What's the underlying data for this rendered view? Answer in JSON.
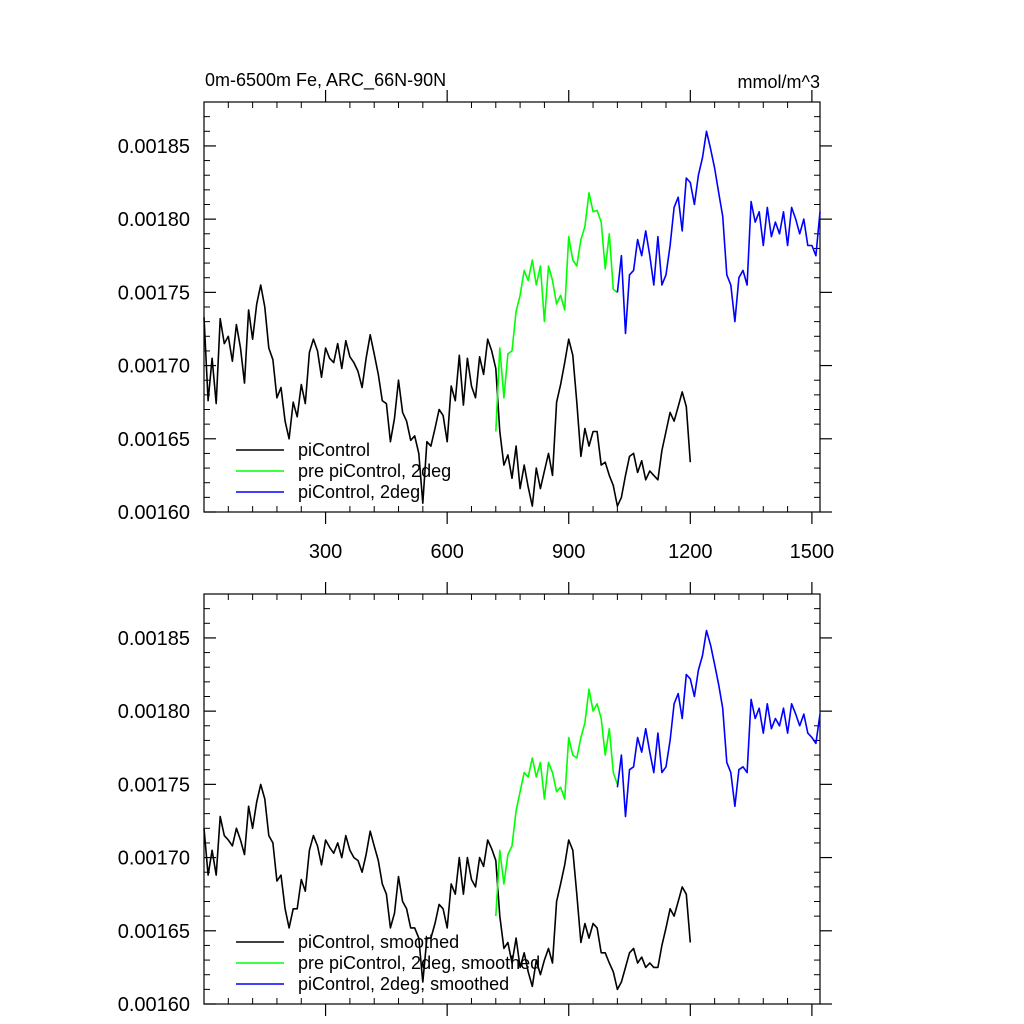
{
  "chart_data": [
    {
      "type": "line",
      "title": "0m-6500m Fe, ARC_66N-90N",
      "units": "mmol/m^3",
      "xlim": [
        0,
        1520
      ],
      "ylim": [
        0.0016,
        0.00188
      ],
      "xticks": [
        300,
        600,
        900,
        1200,
        1500
      ],
      "xtick_labels": [
        "300",
        "600",
        "900",
        "1200",
        "1500"
      ],
      "yticks": [
        0.0016,
        0.00165,
        0.0017,
        0.00175,
        0.0018,
        0.00185
      ],
      "ytick_labels": [
        "0.00160",
        "0.00165",
        "0.00170",
        "0.00175",
        "0.00180",
        "0.00185"
      ],
      "legend_position": "bottom-left",
      "series": [
        {
          "name": "piControl",
          "color": "#000000",
          "x": [
            0,
            10,
            20,
            30,
            40,
            50,
            60,
            70,
            80,
            90,
            100,
            110,
            120,
            130,
            140,
            150,
            160,
            170,
            180,
            190,
            200,
            210,
            220,
            230,
            240,
            250,
            260,
            270,
            280,
            290,
            300,
            310,
            320,
            330,
            340,
            350,
            360,
            370,
            380,
            390,
            400,
            410,
            420,
            430,
            440,
            450,
            460,
            470,
            480,
            490,
            500,
            510,
            520,
            530,
            540,
            550,
            560,
            570,
            580,
            590,
            600,
            610,
            620,
            630,
            640,
            650,
            660,
            670,
            680,
            690,
            700,
            710,
            720,
            730,
            740,
            750,
            760,
            770,
            780,
            790,
            800,
            810,
            820,
            830,
            840,
            850,
            860,
            870,
            880,
            890,
            900,
            910,
            920,
            930,
            940,
            950,
            960,
            970,
            980,
            990,
            1000,
            1010,
            1020,
            1030,
            1040,
            1050,
            1060,
            1070,
            1080,
            1090,
            1100,
            1110,
            1120,
            1130,
            1140,
            1150,
            1160,
            1170,
            1180,
            1190,
            1200
          ],
          "y": [
            0.001733,
            0.001676,
            0.001705,
            0.001674,
            0.001732,
            0.001715,
            0.00172,
            0.001703,
            0.001728,
            0.001712,
            0.001688,
            0.001738,
            0.001718,
            0.001742,
            0.001755,
            0.00174,
            0.001712,
            0.001704,
            0.001678,
            0.001685,
            0.001662,
            0.00165,
            0.001675,
            0.001665,
            0.001687,
            0.001674,
            0.001709,
            0.001718,
            0.00171,
            0.001692,
            0.001712,
            0.001705,
            0.001702,
            0.001715,
            0.001698,
            0.001717,
            0.001706,
            0.001702,
            0.001696,
            0.001685,
            0.001705,
            0.001721,
            0.001708,
            0.001694,
            0.001676,
            0.001674,
            0.001648,
            0.001664,
            0.00169,
            0.001668,
            0.001662,
            0.001649,
            0.001652,
            0.00164,
            0.001606,
            0.001648,
            0.001645,
            0.001657,
            0.00167,
            0.001666,
            0.001648,
            0.001686,
            0.001676,
            0.001707,
            0.001673,
            0.001705,
            0.001686,
            0.001678,
            0.001706,
            0.001694,
            0.001718,
            0.00171,
            0.001698,
            0.001655,
            0.001632,
            0.001639,
            0.001623,
            0.001645,
            0.001616,
            0.001632,
            0.001617,
            0.001604,
            0.00163,
            0.001616,
            0.001628,
            0.00164,
            0.001625,
            0.001675,
            0.001687,
            0.001702,
            0.001718,
            0.001707,
            0.001675,
            0.001638,
            0.001657,
            0.001645,
            0.001655,
            0.001655,
            0.001632,
            0.001634,
            0.001625,
            0.001618,
            0.001604,
            0.00161,
            0.001625,
            0.001638,
            0.00164,
            0.001627,
            0.001635,
            0.001622,
            0.001628,
            0.001625,
            0.001622,
            0.001642,
            0.001655,
            0.001668,
            0.001662,
            0.001672,
            0.001682,
            0.001672,
            0.001634
          ]
        },
        {
          "name": "pre piControl, 2deg",
          "color": "#00ff00",
          "x": [
            720,
            730,
            740,
            750,
            760,
            770,
            780,
            790,
            800,
            810,
            820,
            830,
            840,
            850,
            860,
            870,
            880,
            890,
            900,
            910,
            920,
            930,
            940,
            950,
            960,
            970,
            980,
            990,
            1000,
            1010,
            1020
          ],
          "y": [
            0.001655,
            0.001712,
            0.001678,
            0.001708,
            0.00171,
            0.001737,
            0.001748,
            0.001765,
            0.001758,
            0.001772,
            0.001755,
            0.001768,
            0.00173,
            0.001768,
            0.001758,
            0.001742,
            0.001748,
            0.001738,
            0.001788,
            0.001772,
            0.001768,
            0.001786,
            0.001795,
            0.001818,
            0.001805,
            0.001806,
            0.001798,
            0.001766,
            0.00179,
            0.001752,
            0.00175
          ]
        },
        {
          "name": "piControl, 2deg",
          "color": "#0000ff",
          "x": [
            1020,
            1030,
            1040,
            1050,
            1060,
            1070,
            1080,
            1090,
            1100,
            1110,
            1120,
            1130,
            1140,
            1150,
            1160,
            1170,
            1180,
            1190,
            1200,
            1210,
            1220,
            1230,
            1240,
            1250,
            1260,
            1270,
            1280,
            1290,
            1300,
            1310,
            1320,
            1330,
            1340,
            1350,
            1360,
            1370,
            1380,
            1390,
            1400,
            1410,
            1420,
            1430,
            1440,
            1450,
            1460,
            1470,
            1480,
            1490,
            1500,
            1510,
            1520
          ],
          "y": [
            0.00175,
            0.001775,
            0.001722,
            0.001762,
            0.001765,
            0.001786,
            0.001775,
            0.001792,
            0.001775,
            0.001755,
            0.001788,
            0.001755,
            0.001762,
            0.001782,
            0.001808,
            0.001815,
            0.001792,
            0.001828,
            0.001825,
            0.00181,
            0.00183,
            0.001842,
            0.00186,
            0.001848,
            0.001835,
            0.001818,
            0.001802,
            0.001762,
            0.001755,
            0.00173,
            0.00176,
            0.001765,
            0.001755,
            0.001812,
            0.001798,
            0.001805,
            0.001782,
            0.001808,
            0.001788,
            0.001798,
            0.00179,
            0.001805,
            0.001782,
            0.001808,
            0.0018,
            0.00179,
            0.0018,
            0.001782,
            0.001782,
            0.001775,
            0.001805
          ]
        }
      ]
    },
    {
      "type": "line",
      "xlim": [
        0,
        1520
      ],
      "ylim": [
        0.0016,
        0.00188
      ],
      "xticks": [
        300,
        600,
        900,
        1200,
        1500
      ],
      "yticks": [
        0.0016,
        0.00165,
        0.0017,
        0.00175,
        0.0018,
        0.00185
      ],
      "ytick_labels": [
        "0.00160",
        "0.00165",
        "0.00170",
        "0.00175",
        "0.00180",
        "0.00185"
      ],
      "legend_position": "bottom-left",
      "series": [
        {
          "name": "piControl, smoothed",
          "color": "#000000",
          "x": [
            0,
            10,
            20,
            30,
            40,
            50,
            60,
            70,
            80,
            90,
            100,
            110,
            120,
            130,
            140,
            150,
            160,
            170,
            180,
            190,
            200,
            210,
            220,
            230,
            240,
            250,
            260,
            270,
            280,
            290,
            300,
            310,
            320,
            330,
            340,
            350,
            360,
            370,
            380,
            390,
            400,
            410,
            420,
            430,
            440,
            450,
            460,
            470,
            480,
            490,
            500,
            510,
            520,
            530,
            540,
            550,
            560,
            570,
            580,
            590,
            600,
            610,
            620,
            630,
            640,
            650,
            660,
            670,
            680,
            690,
            700,
            710,
            720,
            730,
            740,
            750,
            760,
            770,
            780,
            790,
            800,
            810,
            820,
            830,
            840,
            850,
            860,
            870,
            880,
            890,
            900,
            910,
            920,
            930,
            940,
            950,
            960,
            970,
            980,
            990,
            1000,
            1010,
            1020,
            1030,
            1040,
            1050,
            1060,
            1070,
            1080,
            1090,
            1100,
            1110,
            1120,
            1130,
            1140,
            1150,
            1160,
            1170,
            1180,
            1190,
            1200
          ],
          "y": [
            0.00172,
            0.001688,
            0.001705,
            0.001688,
            0.001728,
            0.001715,
            0.001712,
            0.001708,
            0.00172,
            0.001712,
            0.001702,
            0.001735,
            0.00172,
            0.001738,
            0.00175,
            0.00174,
            0.001715,
            0.00171,
            0.001684,
            0.001688,
            0.001665,
            0.001652,
            0.001665,
            0.001665,
            0.001685,
            0.001677,
            0.001705,
            0.001715,
            0.001708,
            0.001695,
            0.001712,
            0.001707,
            0.001703,
            0.00171,
            0.0017,
            0.001715,
            0.001705,
            0.0017,
            0.001698,
            0.00169,
            0.001702,
            0.001718,
            0.001708,
            0.001698,
            0.001682,
            0.001675,
            0.001652,
            0.001662,
            0.001687,
            0.00167,
            0.001665,
            0.001652,
            0.001652,
            0.001645,
            0.001615,
            0.001645,
            0.001645,
            0.001655,
            0.001668,
            0.001665,
            0.001652,
            0.001682,
            0.001675,
            0.0017,
            0.001675,
            0.0017,
            0.001685,
            0.00168,
            0.0017,
            0.001694,
            0.001712,
            0.001706,
            0.001698,
            0.00166,
            0.001638,
            0.001642,
            0.001628,
            0.001645,
            0.001625,
            0.001635,
            0.001622,
            0.001612,
            0.00163,
            0.00162,
            0.00163,
            0.001638,
            0.001628,
            0.00167,
            0.001682,
            0.001695,
            0.001712,
            0.001705,
            0.001675,
            0.001642,
            0.001655,
            0.001645,
            0.001655,
            0.001652,
            0.001635,
            0.001635,
            0.001628,
            0.001622,
            0.00161,
            0.001615,
            0.001625,
            0.001635,
            0.001638,
            0.001628,
            0.001632,
            0.001625,
            0.001628,
            0.001625,
            0.001625,
            0.00164,
            0.001652,
            0.001665,
            0.00166,
            0.00167,
            0.00168,
            0.001675,
            0.001642
          ]
        },
        {
          "name": "pre piControl, 2deg, smoothed",
          "color": "#00ff00",
          "x": [
            720,
            730,
            740,
            750,
            760,
            770,
            780,
            790,
            800,
            810,
            820,
            830,
            840,
            850,
            860,
            870,
            880,
            890,
            900,
            910,
            920,
            930,
            940,
            950,
            960,
            970,
            980,
            990,
            1000,
            1010,
            1020
          ],
          "y": [
            0.00166,
            0.001705,
            0.001682,
            0.001702,
            0.001708,
            0.001732,
            0.001745,
            0.001758,
            0.001755,
            0.001768,
            0.001755,
            0.001765,
            0.00174,
            0.001765,
            0.001758,
            0.001745,
            0.001748,
            0.00174,
            0.001782,
            0.00177,
            0.001768,
            0.001782,
            0.001792,
            0.001815,
            0.0018,
            0.001805,
            0.001795,
            0.00177,
            0.001788,
            0.001758,
            0.00175
          ]
        },
        {
          "name": "piControl, 2deg, smoothed",
          "color": "#0000ff",
          "x": [
            1020,
            1030,
            1040,
            1050,
            1060,
            1070,
            1080,
            1090,
            1100,
            1110,
            1120,
            1130,
            1140,
            1150,
            1160,
            1170,
            1180,
            1190,
            1200,
            1210,
            1220,
            1230,
            1240,
            1250,
            1260,
            1270,
            1280,
            1290,
            1300,
            1310,
            1320,
            1330,
            1340,
            1350,
            1360,
            1370,
            1380,
            1390,
            1400,
            1410,
            1420,
            1430,
            1440,
            1450,
            1460,
            1470,
            1480,
            1490,
            1500,
            1510,
            1520
          ],
          "y": [
            0.001748,
            0.00177,
            0.001728,
            0.00176,
            0.001762,
            0.001782,
            0.001772,
            0.001788,
            0.001772,
            0.001758,
            0.001785,
            0.001758,
            0.001762,
            0.00178,
            0.001805,
            0.001812,
            0.001795,
            0.001825,
            0.001822,
            0.00181,
            0.001828,
            0.001838,
            0.001855,
            0.001845,
            0.001832,
            0.001818,
            0.001802,
            0.001765,
            0.001758,
            0.001735,
            0.00176,
            0.001762,
            0.001758,
            0.001808,
            0.001795,
            0.001802,
            0.001785,
            0.001805,
            0.001788,
            0.001795,
            0.00179,
            0.001802,
            0.001785,
            0.001805,
            0.001798,
            0.00179,
            0.001798,
            0.001785,
            0.001782,
            0.001778,
            0.001798
          ]
        }
      ]
    }
  ]
}
